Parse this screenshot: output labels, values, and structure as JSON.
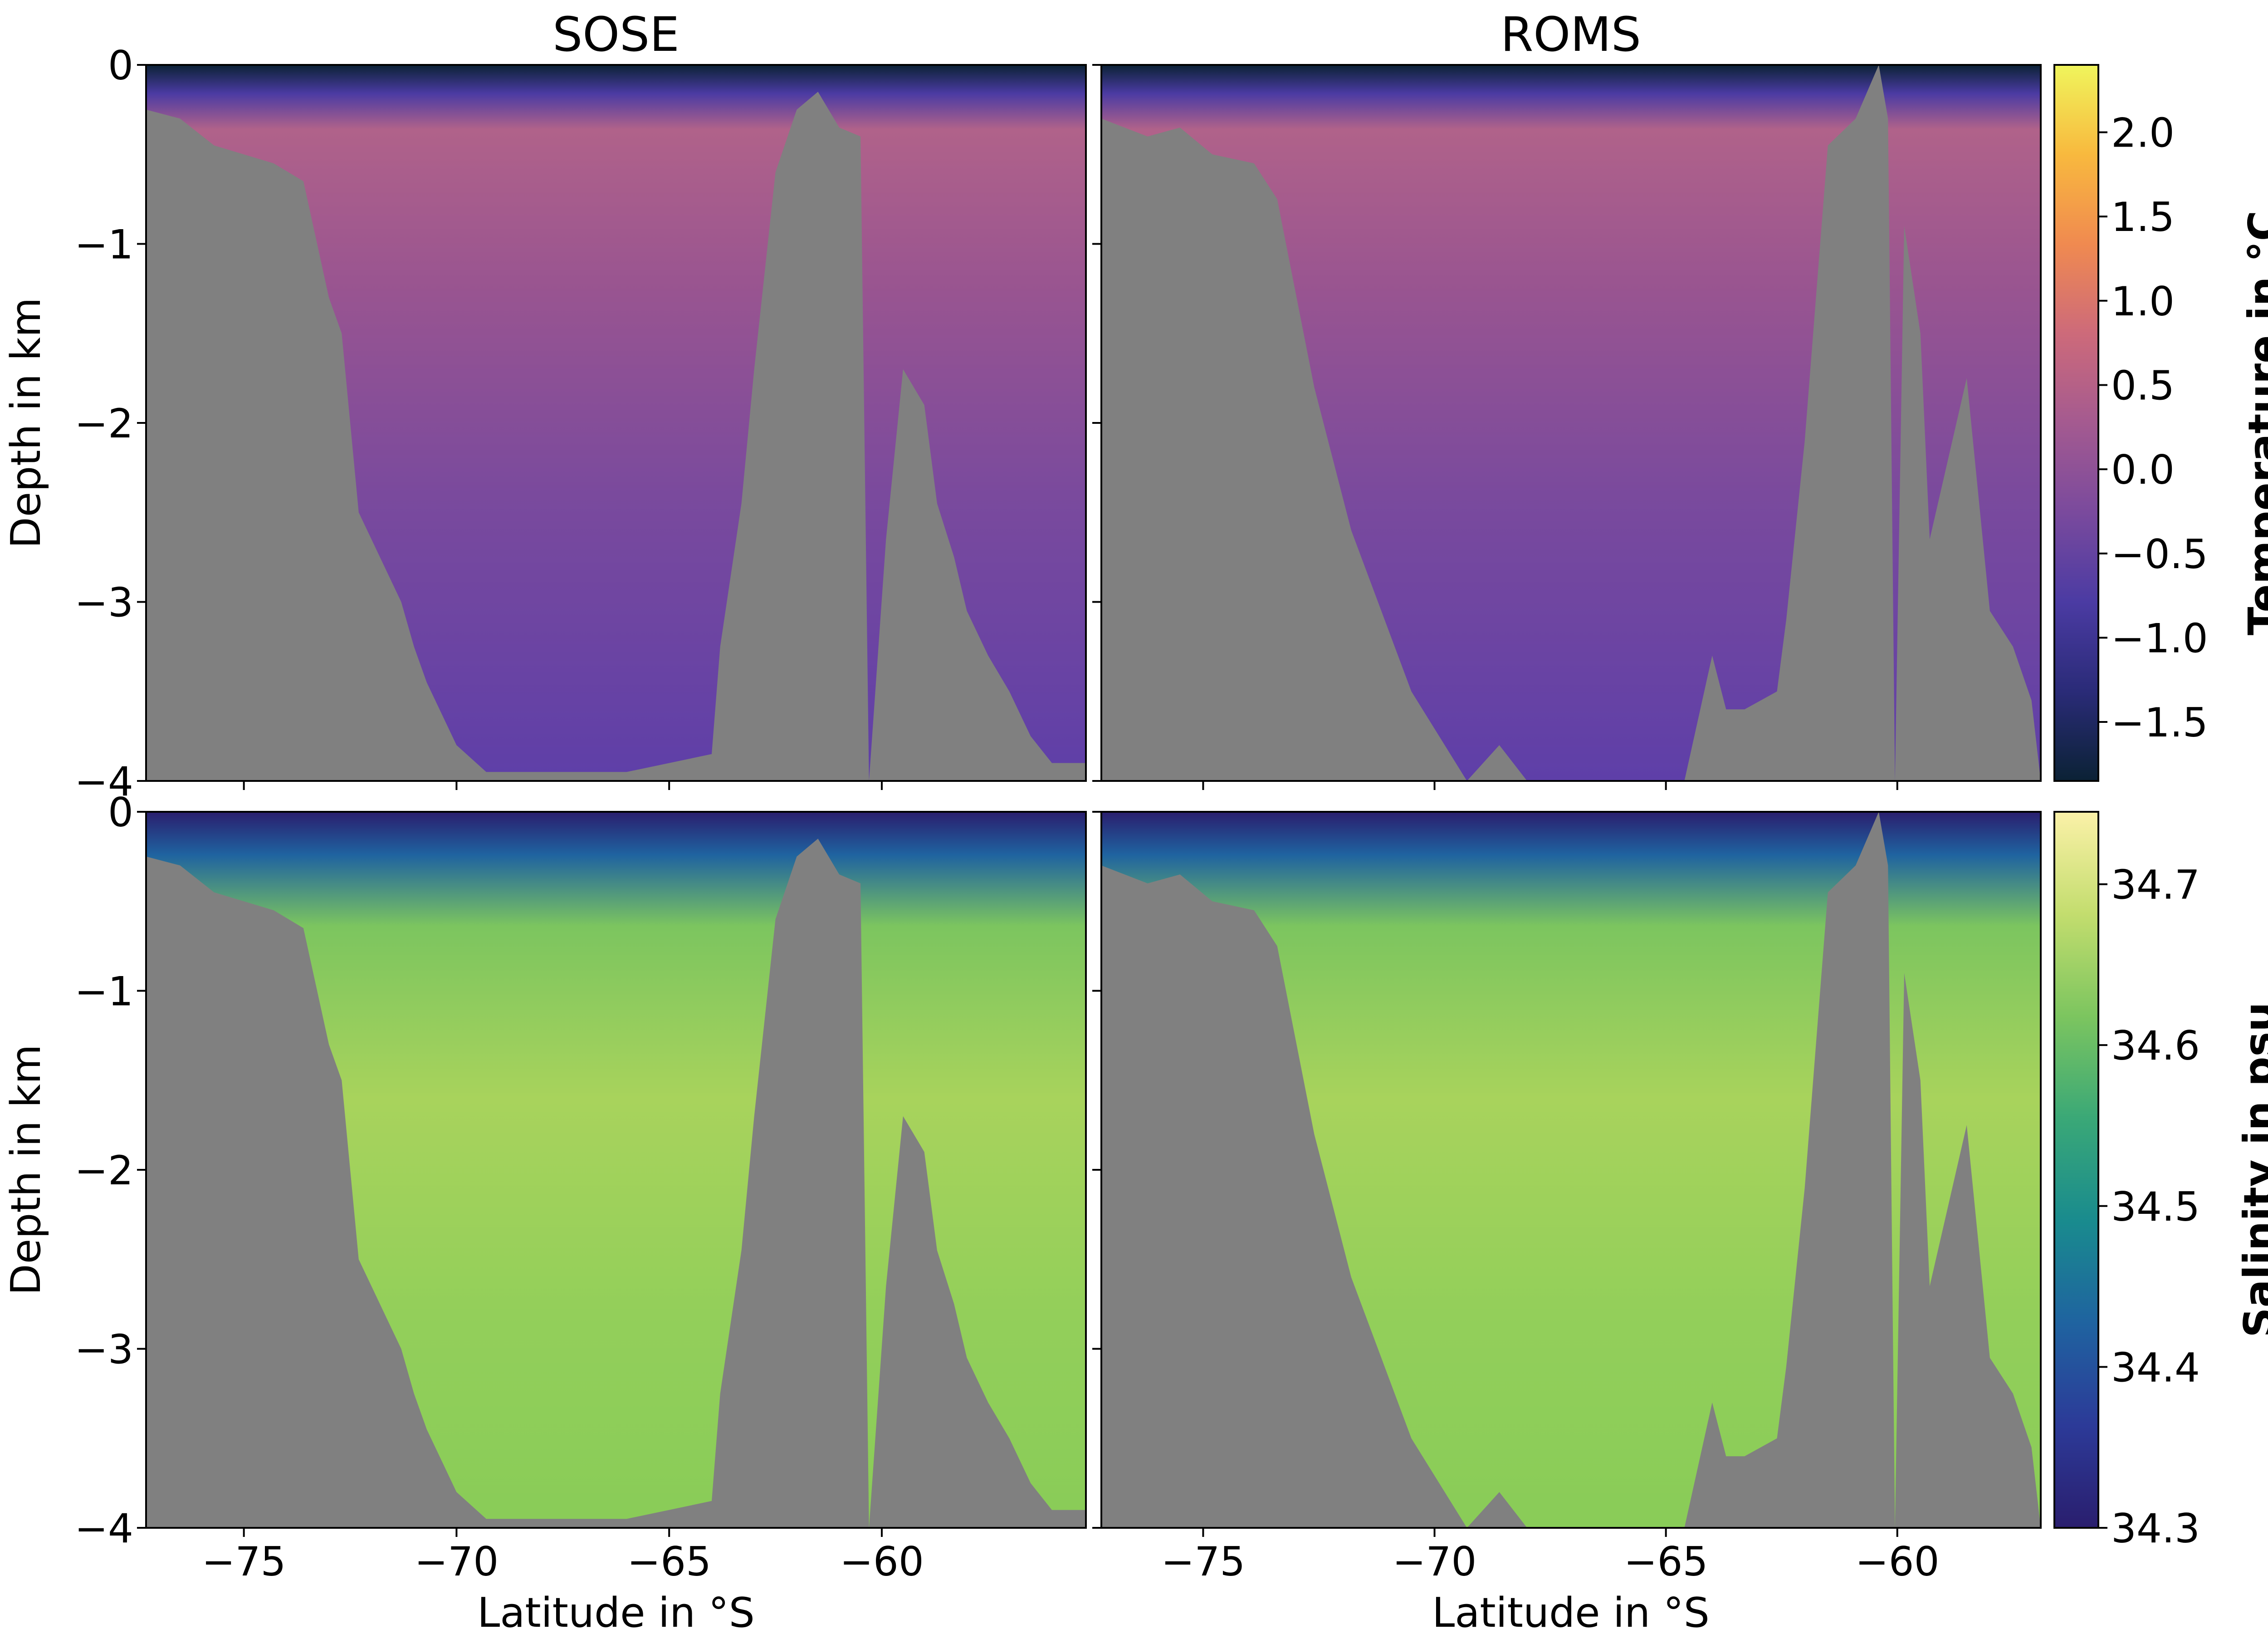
{
  "figure": {
    "col_titles": [
      "SOSE",
      "ROMS"
    ],
    "y_label": "Depth in km",
    "x_label": "Latitude in °S",
    "x_ticks": [
      -75,
      -70,
      -65,
      -60
    ],
    "y_ticks": [
      0,
      -1,
      -2,
      -3,
      -4
    ],
    "land_color": "#808080"
  },
  "colorbars": {
    "temperature": {
      "label": "Temperature in °C",
      "ticks": [
        2.0,
        1.5,
        1.0,
        0.5,
        0.0,
        -0.5,
        -1.0,
        -1.5
      ],
      "tick_labels": [
        "2.0",
        "1.5",
        "1.0",
        "0.5",
        "0.0",
        "−0.5",
        "−1.0",
        "−1.5"
      ],
      "range": [
        -1.85,
        2.4
      ],
      "colormap": "thermal",
      "stops": [
        "#0b2235",
        "#2a2b78",
        "#4b3ba3",
        "#7a4a9d",
        "#a45a90",
        "#cd6a7a",
        "#f08a50",
        "#f8b93e",
        "#f0f55c"
      ]
    },
    "salinity": {
      "label": "Salinity in psu",
      "ticks": [
        34.7,
        34.6,
        34.5,
        34.4,
        34.3
      ],
      "tick_labels": [
        "34.7",
        "34.6",
        "34.5",
        "34.4",
        "34.3"
      ],
      "range": [
        34.3,
        34.745
      ],
      "colormap": "haline",
      "stops": [
        "#2a1e6e",
        "#2c3a98",
        "#1f63a0",
        "#198b8e",
        "#3aa877",
        "#7cc55f",
        "#c3dd6e",
        "#fbf1a8"
      ]
    }
  },
  "chart_data": [
    {
      "type": "heatmap",
      "title": "SOSE",
      "ylabel": "Depth in km",
      "xlim": [
        -77.3,
        -55.2
      ],
      "ylim": [
        -4,
        0
      ],
      "xticks": [
        -75,
        -70,
        -65,
        -60
      ],
      "yticks": [
        0,
        -1,
        -2,
        -3,
        -4
      ],
      "variable": "temperature",
      "colorbar": "Temperature in °C",
      "bathymetry": {
        "lat": [
          -77.3,
          -76.5,
          -75.7,
          -75.0,
          -74.3,
          -73.6,
          -73.0,
          -72.7,
          -72.3,
          -72.0,
          -71.7,
          -71.3,
          -71.0,
          -70.7,
          -70.3,
          -70.0,
          -69.3,
          -68.0,
          -66.0,
          -64.0,
          -63.8,
          -63.3,
          -63.0,
          -62.5,
          -62.0,
          -61.5,
          -61.0,
          -60.5,
          -60.3,
          -59.9,
          -59.5,
          -59.0,
          -58.7,
          -58.3,
          -58.0,
          -57.5,
          -57.0,
          -56.5,
          -56.0,
          -55.2
        ],
        "depth": [
          -0.25,
          -0.3,
          -0.45,
          -0.5,
          -0.55,
          -0.65,
          -1.3,
          -1.5,
          -2.5,
          -2.65,
          -2.8,
          -3.0,
          -3.25,
          -3.45,
          -3.65,
          -3.8,
          -3.95,
          -3.95,
          -3.95,
          -3.85,
          -3.25,
          -2.45,
          -1.7,
          -0.6,
          -0.25,
          -0.15,
          -0.35,
          -0.4,
          -4.0,
          -2.65,
          -1.7,
          -1.9,
          -2.45,
          -2.75,
          -3.05,
          -3.3,
          -3.5,
          -3.75,
          -3.9,
          -3.9
        ]
      }
    },
    {
      "type": "heatmap",
      "title": "ROMS",
      "xlim": [
        -77.2,
        -56.9
      ],
      "ylim": [
        -4,
        0
      ],
      "xticks": [
        -75,
        -70,
        -65,
        -60
      ],
      "variable": "temperature",
      "colorbar": "Temperature in °C",
      "bathymetry": {
        "lat": [
          -77.2,
          -76.2,
          -75.5,
          -74.8,
          -73.9,
          -73.4,
          -72.6,
          -71.8,
          -70.5,
          -69.3,
          -68.6,
          -68.0,
          -66.5,
          -64.6,
          -64.0,
          -63.7,
          -63.3,
          -62.6,
          -62.4,
          -62.0,
          -61.5,
          -60.9,
          -60.4,
          -60.2,
          -60.05,
          -59.85,
          -59.5,
          -59.3,
          -58.9,
          -58.5,
          -58.0,
          -57.5,
          -57.1,
          -56.9
        ],
        "depth": [
          -0.3,
          -0.4,
          -0.35,
          -0.5,
          -0.55,
          -0.75,
          -1.8,
          -2.6,
          -3.5,
          -4.0,
          -3.8,
          -4.0,
          -4.0,
          -4.0,
          -3.3,
          -3.6,
          -3.6,
          -3.5,
          -3.1,
          -2.1,
          -0.45,
          -0.3,
          0.0,
          -0.3,
          -4.0,
          -0.9,
          -1.5,
          -2.65,
          -2.2,
          -1.75,
          -3.05,
          -3.25,
          -3.55,
          -4.0
        ]
      }
    },
    {
      "type": "heatmap",
      "xlabel": "Latitude in °S",
      "ylabel": "Depth in km",
      "xlim": [
        -77.3,
        -55.2
      ],
      "ylim": [
        -4,
        0
      ],
      "xticks": [
        -75,
        -70,
        -65,
        -60
      ],
      "yticks": [
        0,
        -1,
        -2,
        -3,
        -4
      ],
      "variable": "salinity",
      "colorbar": "Salinity in psu"
    },
    {
      "type": "heatmap",
      "xlabel": "Latitude in °S",
      "xlim": [
        -77.2,
        -56.9
      ],
      "ylim": [
        -4,
        0
      ],
      "xticks": [
        -75,
        -70,
        -65,
        -60
      ],
      "variable": "salinity",
      "colorbar": "Salinity in psu"
    }
  ]
}
